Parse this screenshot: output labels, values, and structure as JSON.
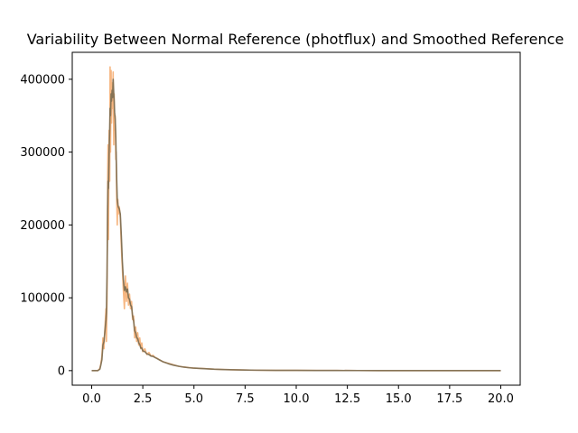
{
  "chart_data": {
    "type": "line",
    "title": "Variability Between Normal Reference (photflux) and Smoothed Reference",
    "xlabel": "",
    "ylabel": "",
    "xlim": [
      -0.95,
      20.95
    ],
    "ylim": [
      -20000,
      437000
    ],
    "xticks": [
      0.0,
      2.5,
      5.0,
      7.5,
      10.0,
      12.5,
      15.0,
      17.5,
      20.0
    ],
    "xtick_labels": [
      "0.0",
      "2.5",
      "5.0",
      "7.5",
      "10.0",
      "12.5",
      "15.0",
      "17.5",
      "20.0"
    ],
    "yticks": [
      0,
      100000,
      200000,
      300000,
      400000
    ],
    "ytick_labels": [
      "0",
      "100000",
      "200000",
      "300000",
      "400000"
    ],
    "grid": false,
    "legend": "none",
    "series": [
      {
        "color": "#f5a96b",
        "opacity": 0.85,
        "x": [
          0.0,
          0.3,
          0.4,
          0.45,
          0.5,
          0.55,
          0.6,
          0.65,
          0.7,
          0.72,
          0.75,
          0.78,
          0.8,
          0.82,
          0.85,
          0.88,
          0.9,
          0.92,
          0.95,
          0.97,
          1.0,
          1.02,
          1.05,
          1.08,
          1.1,
          1.12,
          1.15,
          1.18,
          1.2,
          1.22,
          1.25,
          1.28,
          1.3,
          1.35,
          1.4,
          1.45,
          1.5,
          1.55,
          1.6,
          1.65,
          1.7,
          1.75,
          1.8,
          1.85,
          1.9,
          1.95,
          2.0,
          2.05,
          2.1,
          2.15,
          2.2,
          2.25,
          2.3,
          2.35,
          2.4,
          2.45,
          2.5,
          2.6,
          2.7,
          2.8,
          2.9,
          3.0,
          3.1,
          3.2,
          3.3,
          3.5,
          3.75,
          4.0,
          4.25,
          4.5,
          4.75,
          5.0,
          5.5,
          6.0,
          6.5,
          7.0,
          7.5,
          8.0,
          9.0,
          10.0,
          11.0,
          12.0,
          13.0,
          14.0,
          15.0,
          16.0,
          17.0,
          18.0,
          19.0,
          20.0
        ],
        "y": [
          0,
          0,
          3000,
          10000,
          20000,
          45000,
          30000,
          60000,
          85000,
          40000,
          98000,
          250000,
          310000,
          180000,
          330000,
          260000,
          417000,
          300000,
          412000,
          340000,
          395000,
          360000,
          410000,
          310000,
          380000,
          330000,
          350000,
          290000,
          300000,
          240000,
          200000,
          235000,
          215000,
          225000,
          210000,
          170000,
          140000,
          110000,
          85000,
          130000,
          95000,
          120000,
          90000,
          105000,
          85000,
          95000,
          70000,
          75000,
          45000,
          60000,
          40000,
          52000,
          35000,
          45000,
          30000,
          38000,
          26000,
          30000,
          22000,
          25000,
          20000,
          21000,
          18000,
          17000,
          15000,
          12000,
          10000,
          8000,
          6000,
          5000,
          4200,
          3500,
          2800,
          2000,
          1500,
          1100,
          800,
          600,
          400,
          300,
          200,
          150,
          120,
          100,
          80,
          60,
          50,
          40,
          30,
          20
        ]
      },
      {
        "color": "#7f7053",
        "opacity": 0.95,
        "x": [
          0.0,
          0.3,
          0.4,
          0.45,
          0.5,
          0.55,
          0.6,
          0.65,
          0.7,
          0.72,
          0.75,
          0.78,
          0.8,
          0.82,
          0.85,
          0.88,
          0.9,
          0.92,
          0.95,
          0.97,
          1.0,
          1.02,
          1.05,
          1.08,
          1.1,
          1.12,
          1.15,
          1.18,
          1.2,
          1.22,
          1.25,
          1.28,
          1.3,
          1.35,
          1.4,
          1.45,
          1.5,
          1.55,
          1.6,
          1.65,
          1.7,
          1.75,
          1.8,
          1.85,
          1.9,
          1.95,
          2.0,
          2.05,
          2.1,
          2.15,
          2.2,
          2.25,
          2.3,
          2.35,
          2.4,
          2.45,
          2.5,
          2.6,
          2.7,
          2.8,
          2.9,
          3.0,
          3.1,
          3.2,
          3.3,
          3.5,
          3.75,
          4.0,
          4.25,
          4.5,
          4.75,
          5.0,
          5.5,
          6.0,
          6.5,
          7.0,
          7.5,
          8.0,
          9.0,
          10.0,
          11.0,
          12.0,
          13.0,
          14.0,
          15.0,
          16.0,
          17.0,
          18.0,
          19.0,
          20.0
        ],
        "y": [
          0,
          0,
          2000,
          8000,
          15000,
          35000,
          40000,
          55000,
          70000,
          80000,
          130000,
          220000,
          260000,
          250000,
          300000,
          330000,
          360000,
          350000,
          380000,
          370000,
          385000,
          375000,
          400000,
          380000,
          370000,
          355000,
          345000,
          320000,
          290000,
          265000,
          235000,
          228000,
          225000,
          222000,
          215000,
          185000,
          150000,
          125000,
          110000,
          115000,
          108000,
          112000,
          100000,
          98000,
          90000,
          88000,
          75000,
          68000,
          55000,
          52000,
          45000,
          44000,
          38000,
          36000,
          31000,
          31000,
          27000,
          26000,
          23000,
          22000,
          20000,
          19500,
          18000,
          16500,
          15000,
          12000,
          9500,
          7500,
          6000,
          4800,
          4000,
          3400,
          2700,
          1900,
          1500,
          1100,
          800,
          600,
          400,
          300,
          200,
          150,
          120,
          100,
          80,
          60,
          50,
          40,
          30,
          20
        ]
      }
    ]
  }
}
